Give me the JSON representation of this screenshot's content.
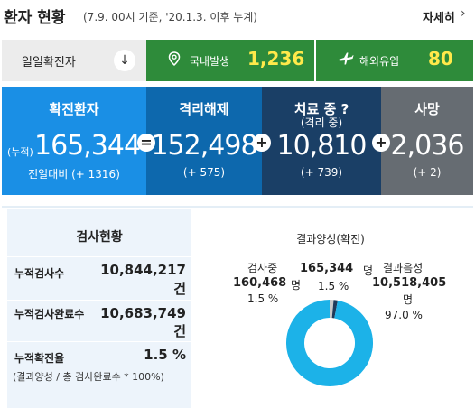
{
  "header": {
    "title": "환자 현황",
    "subtitle": "(7.9. 00시 기준, '20.1.3. 이후 누계)",
    "more_label": "자세히",
    "more_icon": "chevron-right-icon"
  },
  "daily": {
    "label": "일일확진자",
    "toggle_icon": "arrow-down-icon",
    "domestic_label": "국내발생",
    "domestic_value": "1,236",
    "domestic_icon": "map-pin-icon",
    "overseas_label": "해외유입",
    "overseas_value": "80",
    "overseas_icon": "airplane-icon",
    "accent_color": "#2e8b3a",
    "highlight_color": "#ffe94a"
  },
  "stats": {
    "confirmed": {
      "label": "확진환자",
      "prefix": "(누적)",
      "value": "165,344",
      "delta": "전일대비 (+ 1316)",
      "color": "#1a8fe5"
    },
    "released": {
      "label": "격리해제",
      "value": "152,498",
      "delta": "(+ 575)",
      "color": "#0d68ad"
    },
    "treating": {
      "label": "치료 중 ?",
      "sublabel": "(격리 중)",
      "value": "10,810",
      "delta": "(+ 739)",
      "color": "#1a3f66"
    },
    "deaths": {
      "label": "사망",
      "value": "2,036",
      "delta": "(+ 2)",
      "color": "#666c72"
    },
    "operators": [
      "=",
      "+",
      "+"
    ]
  },
  "tests": {
    "title": "검사현황",
    "rows": [
      {
        "label": "누적검사수",
        "value": "10,844,217",
        "unit": "건"
      },
      {
        "label": "누적검사완료수",
        "value": "10,683,749",
        "unit": "건"
      },
      {
        "label": "누적확진율",
        "value": "1.5 %",
        "unit": ""
      }
    ],
    "note": "(결과양성 / 총 검사완료수 * 100%)"
  },
  "results": {
    "testing_label": "검사중",
    "testing_value": "160,468",
    "testing_unit": "명",
    "testing_pct": "1.5 %",
    "positive_label": "결과양성(확진)",
    "positive_value": "165,344",
    "positive_unit": "명",
    "positive_pct": "1.5 %",
    "negative_label": "결과음성",
    "negative_value": "10,518,405",
    "negative_unit": "명",
    "negative_pct": "97.0 %",
    "donut_fractions": [
      0.015,
      0.015,
      0.97
    ],
    "donut_colors": [
      "#c9c9c9",
      "#1f3a5a",
      "#1cb2e8"
    ]
  }
}
